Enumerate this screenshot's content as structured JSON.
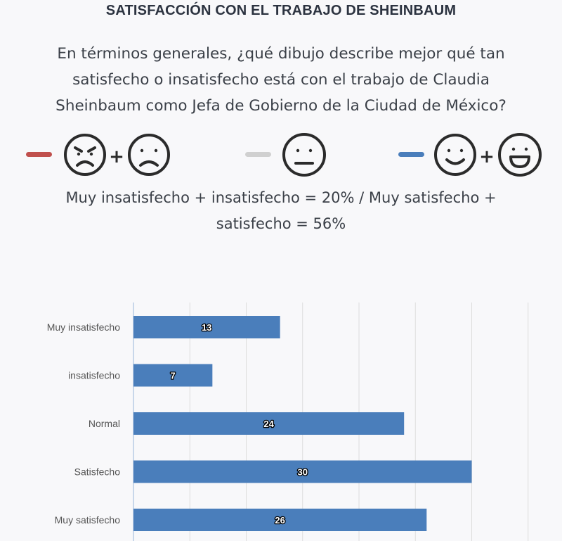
{
  "header": {
    "title": "SATISFACCIÓN CON EL TRABAJO DE SHEINBAUM",
    "question": "En términos generales, ¿qué dibujo describe mejor qué tan satisfecho o insatisfecho está con el trabajo de Claudia Sheinbaum como Jefa de Gobierno de la Ciudad de México?",
    "summary": "Muy insatisfecho + insatisfecho = 20% / Muy satisfecho + satisfecho = 56%"
  },
  "legend": {
    "negative_color": "#c0504d",
    "neutral_color": "#d0d0d0",
    "positive_color": "#4a7ebb",
    "icons": [
      "angry-face-icon",
      "sad-face-icon",
      "neutral-face-icon",
      "smile-face-icon",
      "grin-face-icon"
    ],
    "plus": "+"
  },
  "chart_data": {
    "type": "bar",
    "orientation": "horizontal",
    "categories": [
      "Muy insatisfecho",
      "insatisfecho",
      "Normal",
      "Satisfecho",
      "Muy satisfecho"
    ],
    "values": [
      13,
      7,
      24,
      30,
      26
    ],
    "xlim": [
      0,
      35
    ],
    "grid": true,
    "bar_color": "#4a7ebb"
  }
}
